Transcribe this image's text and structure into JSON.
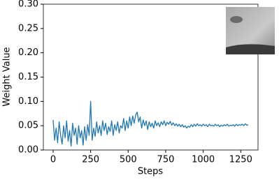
{
  "chart_data": {
    "type": "line",
    "xlabel": "Steps",
    "ylabel": "Weight Value",
    "color": "#1f77b4",
    "x": [
      0,
      10,
      20,
      30,
      40,
      50,
      60,
      70,
      80,
      90,
      100,
      110,
      120,
      130,
      140,
      150,
      160,
      170,
      180,
      190,
      200,
      210,
      220,
      230,
      240,
      250,
      260,
      270,
      280,
      290,
      300,
      310,
      320,
      330,
      340,
      350,
      360,
      370,
      380,
      390,
      400,
      410,
      420,
      430,
      440,
      450,
      460,
      470,
      480,
      490,
      500,
      510,
      520,
      530,
      540,
      550,
      560,
      570,
      580,
      590,
      600,
      610,
      620,
      630,
      640,
      650,
      660,
      670,
      680,
      690,
      700,
      710,
      720,
      730,
      740,
      750,
      760,
      770,
      780,
      790,
      800,
      810,
      820,
      830,
      840,
      850,
      860,
      870,
      880,
      890,
      900,
      910,
      920,
      930,
      940,
      950,
      960,
      970,
      980,
      990,
      1000,
      1010,
      1020,
      1030,
      1040,
      1050,
      1060,
      1070,
      1080,
      1090,
      1100,
      1110,
      1120,
      1130,
      1140,
      1150,
      1160,
      1170,
      1180,
      1190,
      1200,
      1210,
      1220,
      1230,
      1240,
      1250,
      1260,
      1270,
      1280,
      1290,
      1300
    ],
    "values": [
      0.062,
      0.02,
      0.045,
      0.015,
      0.058,
      0.03,
      0.012,
      0.05,
      0.025,
      0.06,
      0.018,
      0.04,
      0.008,
      0.055,
      0.03,
      0.045,
      0.012,
      0.05,
      0.025,
      0.04,
      0.01,
      0.048,
      0.02,
      0.052,
      0.03,
      0.1,
      0.02,
      0.045,
      0.028,
      0.058,
      0.035,
      0.05,
      0.03,
      0.06,
      0.04,
      0.055,
      0.032,
      0.048,
      0.038,
      0.06,
      0.03,
      0.052,
      0.04,
      0.058,
      0.035,
      0.05,
      0.045,
      0.065,
      0.04,
      0.06,
      0.045,
      0.068,
      0.05,
      0.07,
      0.055,
      0.072,
      0.078,
      0.058,
      0.068,
      0.045,
      0.062,
      0.05,
      0.06,
      0.042,
      0.058,
      0.048,
      0.055,
      0.045,
      0.06,
      0.05,
      0.056,
      0.048,
      0.058,
      0.052,
      0.06,
      0.05,
      0.057,
      0.053,
      0.059,
      0.051,
      0.056,
      0.05,
      0.054,
      0.049,
      0.053,
      0.048,
      0.052,
      0.047,
      0.05,
      0.045,
      0.049,
      0.047,
      0.052,
      0.048,
      0.053,
      0.049,
      0.054,
      0.05,
      0.052,
      0.049,
      0.053,
      0.05,
      0.052,
      0.048,
      0.053,
      0.05,
      0.051,
      0.049,
      0.053,
      0.05,
      0.052,
      0.048,
      0.051,
      0.049,
      0.052,
      0.05,
      0.053,
      0.049,
      0.051,
      0.05,
      0.052,
      0.049,
      0.053,
      0.05,
      0.052,
      0.051,
      0.053,
      0.05,
      0.054,
      0.051,
      0.052
    ],
    "xlim": [
      -65,
      1365
    ],
    "xticks": [
      0,
      250,
      500,
      750,
      1000,
      1250
    ],
    "ylim": [
      0,
      0.3
    ],
    "yticks": [
      {
        "value": 0,
        "label": "0.00"
      },
      {
        "value": 0.05,
        "label": "0.05"
      },
      {
        "value": 0.1,
        "label": "0.10"
      },
      {
        "value": 0.15,
        "label": "0.15"
      },
      {
        "value": 0.2,
        "label": "0.20"
      },
      {
        "value": 0.25,
        "label": "0.25"
      },
      {
        "value": 0.3,
        "label": "0.30"
      }
    ]
  }
}
